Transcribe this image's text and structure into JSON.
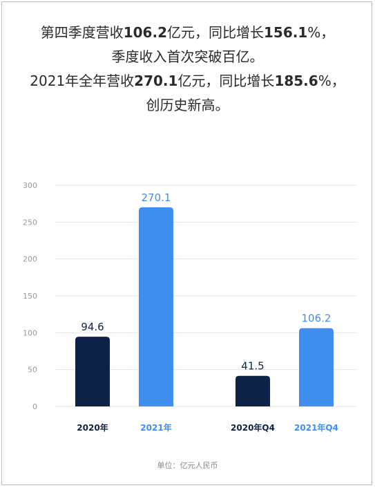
{
  "headline": {
    "line1": [
      {
        "text": "第四季度营收",
        "bold": false
      },
      {
        "text": "106.2",
        "bold": true
      },
      {
        "text": "亿元，同比增长",
        "bold": false
      },
      {
        "text": "156.1",
        "bold": true
      },
      {
        "text": "%，",
        "bold": false
      }
    ],
    "line2": [
      {
        "text": "季度收入首次突破百亿。",
        "bold": false
      }
    ],
    "line3": [
      {
        "text": "2021年全年营收",
        "bold": false
      },
      {
        "text": "270.1",
        "bold": true
      },
      {
        "text": "亿元，同比增长",
        "bold": false
      },
      {
        "text": "185.6",
        "bold": true
      },
      {
        "text": "%，",
        "bold": false
      }
    ],
    "line4": [
      {
        "text": "创历史新高。",
        "bold": false
      }
    ]
  },
  "unit_label": "单位：亿元人民币",
  "colors": {
    "dark": "#0e2248",
    "light": "#3f8ef0",
    "grid": "#e6e6e6",
    "axis_text": "#9a9a9a"
  },
  "chart_data": {
    "type": "bar",
    "categories": [
      "2020年",
      "2021年",
      "2020年Q4",
      "2021年Q4"
    ],
    "values": [
      94.6,
      270.1,
      41.5,
      106.2
    ],
    "value_labels": [
      "94.6",
      "270.1",
      "41.5",
      "106.2"
    ],
    "bar_colors": [
      "dark",
      "light",
      "dark",
      "light"
    ],
    "ylim": [
      0,
      300
    ],
    "yticks": [
      0,
      50,
      100,
      150,
      200,
      250,
      300
    ],
    "grid": true,
    "title": "",
    "xlabel": "",
    "ylabel": ""
  }
}
